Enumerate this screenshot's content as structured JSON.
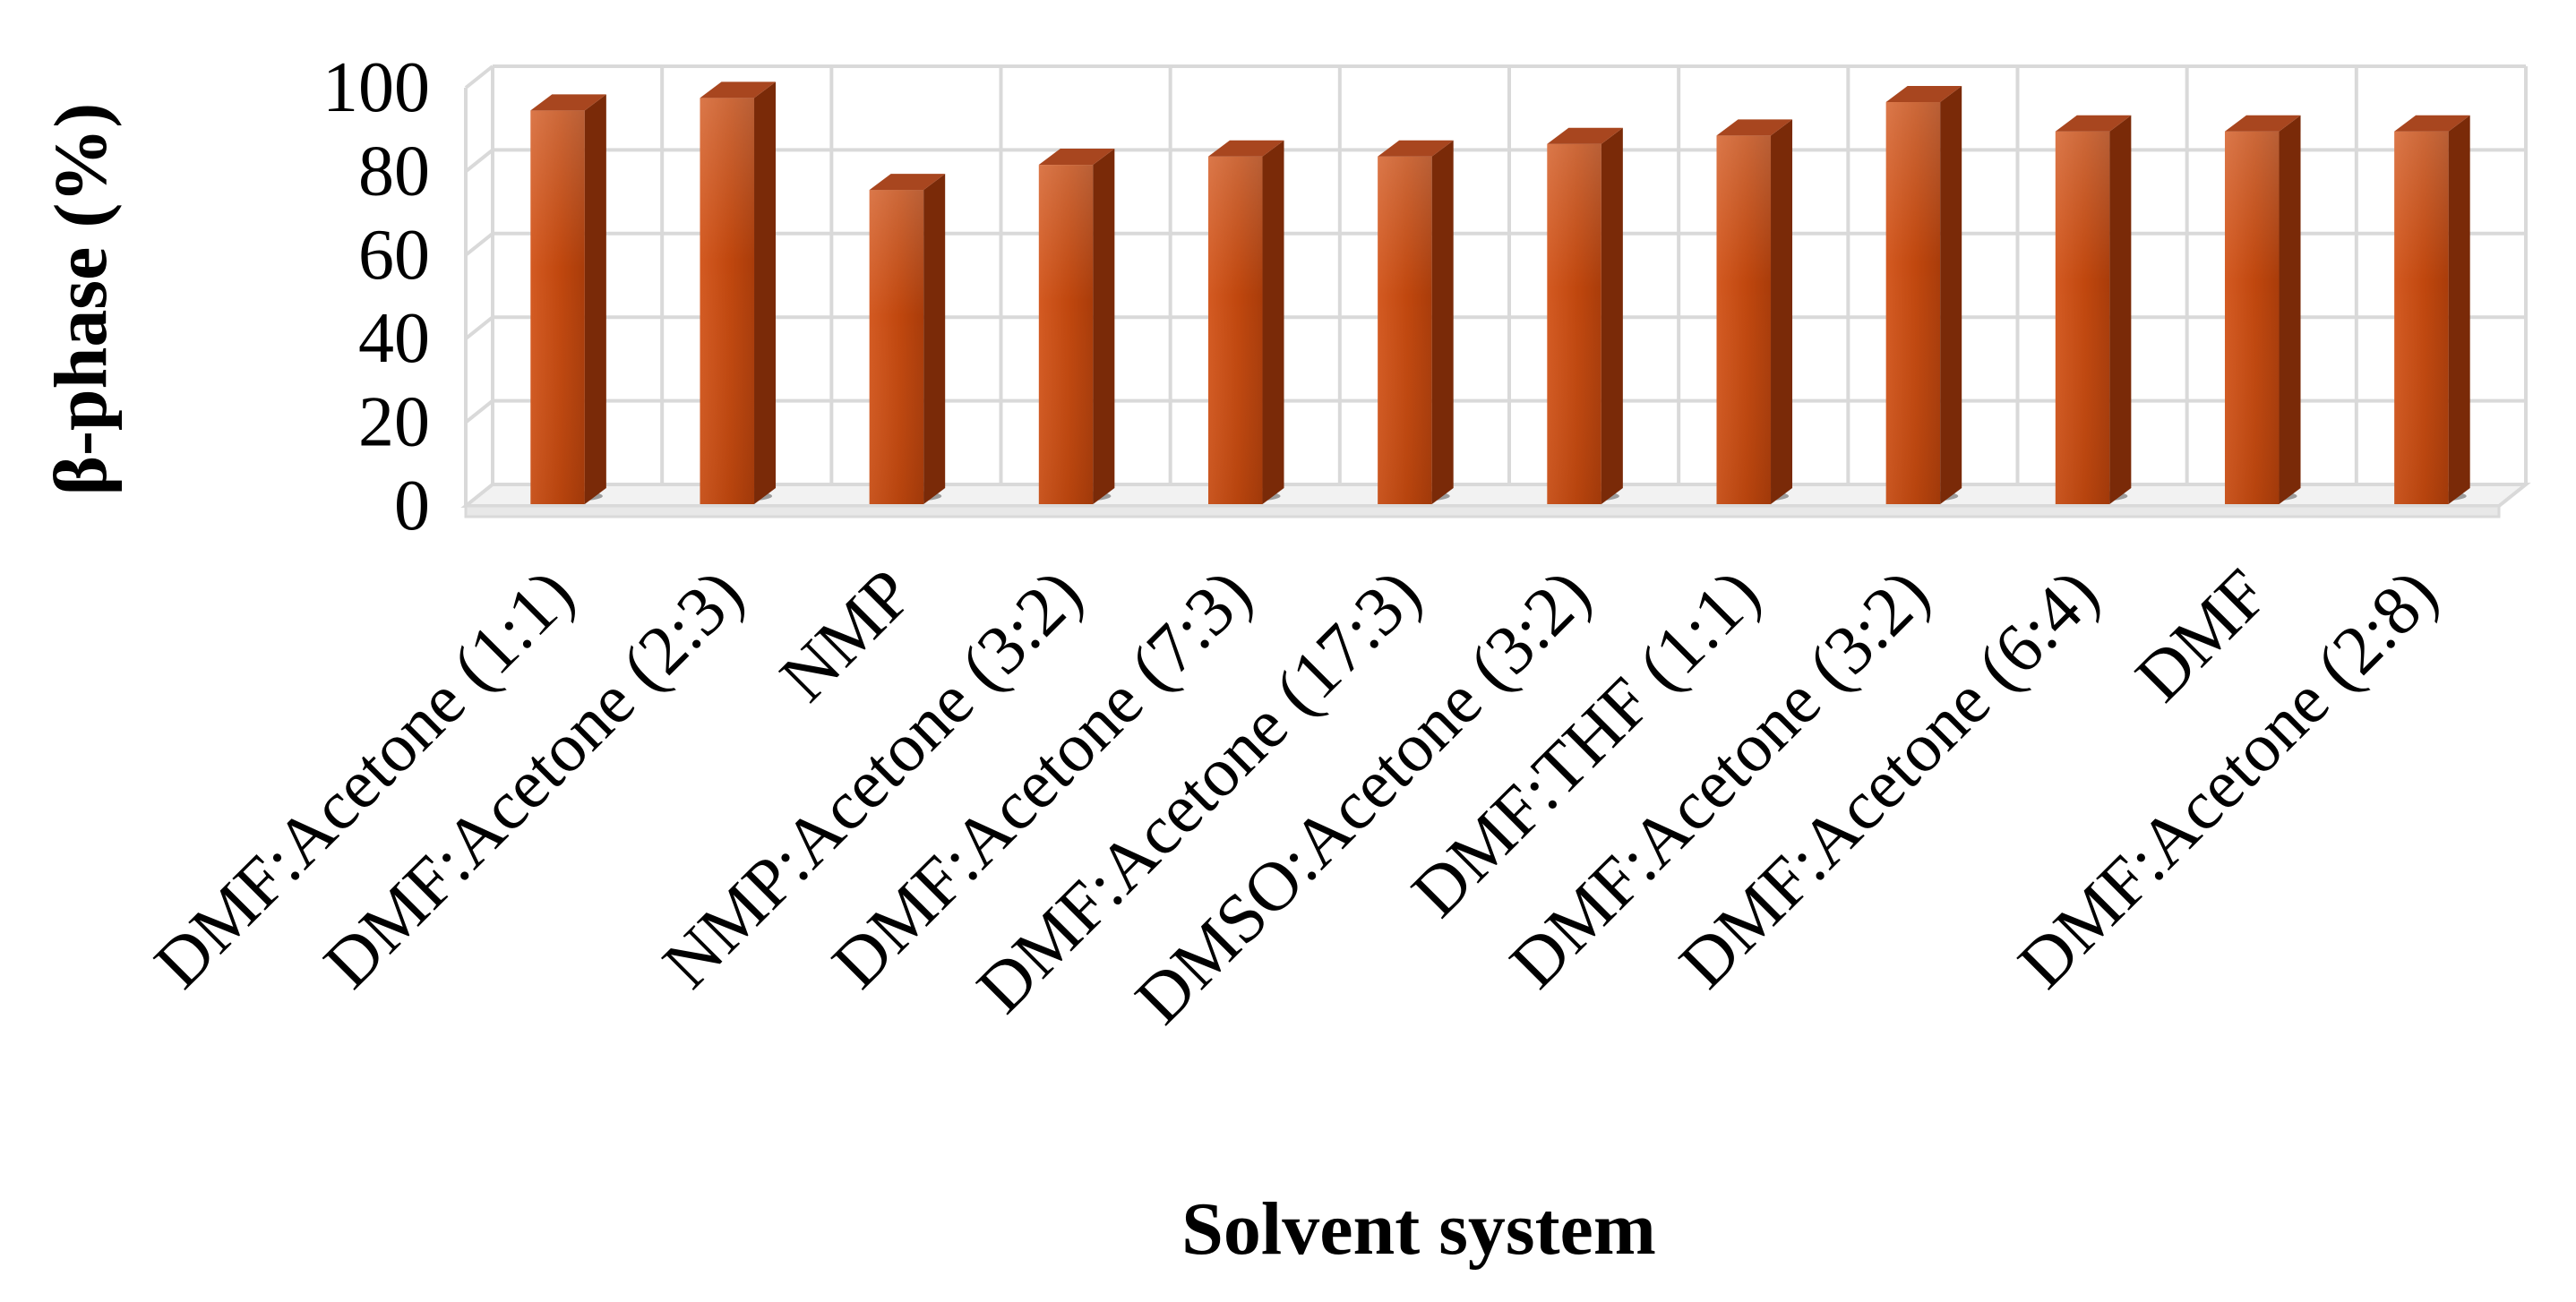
{
  "chart_data": {
    "type": "bar",
    "style": "3d-column",
    "categories": [
      "DMF:Acetone (1:1)",
      "DMF:Acetone (2:3)",
      "NMP",
      "NMP:Acetone (3:2)",
      "DMF:Acetone (7:3)",
      "DMF:Acetone (17:3)",
      "DMSO:Acetone (3:2)",
      "DMF:THF (1:1)",
      "DMF:Acetone (3:2)",
      "DMF:Acetone (6:4)",
      "DMF",
      "DMF:Acetone (2:8)"
    ],
    "values": [
      95,
      98,
      76,
      82,
      84,
      84,
      87,
      89,
      97,
      90,
      90,
      90
    ],
    "title": "",
    "xlabel": "Solvent system",
    "ylabel": "β-phase (%)",
    "ylim": [
      0,
      100
    ],
    "yticks": [
      0,
      20,
      40,
      60,
      80,
      100
    ],
    "grid": true,
    "legend": "none",
    "colors": {
      "bar_front": "#c0470e",
      "bar_top": "#a8461f",
      "bar_side": "#7a2a08",
      "grid": "#d9d9d9"
    }
  }
}
